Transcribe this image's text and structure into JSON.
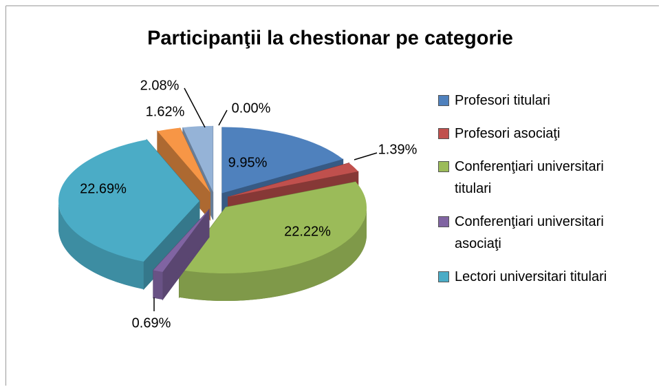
{
  "chart_data": {
    "type": "pie3d",
    "title": "Participanţii la chestionar pe categorie",
    "categories": [
      "Profesori titulari",
      "Profesori asociaţi",
      "Conferenţiari universitari titulari",
      "Conferenţiari universitari asociaţi",
      "Lectori universitari titulari",
      null,
      null,
      null
    ],
    "values": [
      9.95,
      1.39,
      22.22,
      0.69,
      22.69,
      1.62,
      2.08,
      0.0
    ],
    "value_labels": [
      "9.95%",
      "1.39%",
      "22.22%",
      "0.69%",
      "22.69%",
      "1.62%",
      "2.08%",
      "0.00%"
    ],
    "colors": [
      "#4f81bd",
      "#c0504d",
      "#9bbb59",
      "#8064a2",
      "#4bacc6",
      "#f79646",
      "#95b3d7",
      "#d99694"
    ],
    "legend": "right"
  }
}
